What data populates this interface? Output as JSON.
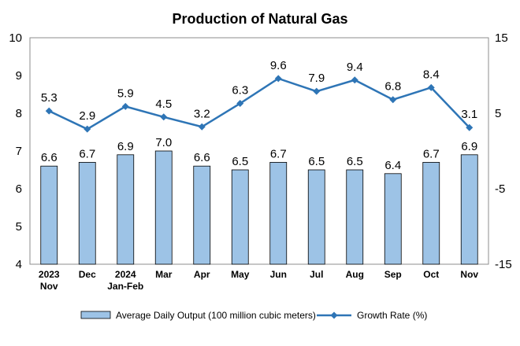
{
  "chart_data": {
    "type": "bar",
    "title": "Production of Natural Gas",
    "categories": [
      [
        "2023",
        "Nov"
      ],
      [
        "Dec"
      ],
      [
        "2024",
        "Jan-Feb"
      ],
      [
        "Mar"
      ],
      [
        "Apr"
      ],
      [
        "May"
      ],
      [
        "Jun"
      ],
      [
        "Jul"
      ],
      [
        "Aug"
      ],
      [
        "Sep"
      ],
      [
        "Oct"
      ],
      [
        "Nov"
      ]
    ],
    "series": [
      {
        "name": "Average Daily Output (100 million cubic meters)",
        "type": "bar",
        "axis": "left",
        "color": "#9dc3e6",
        "values": [
          6.6,
          6.7,
          6.9,
          7.0,
          6.6,
          6.5,
          6.7,
          6.5,
          6.5,
          6.4,
          6.7,
          6.9
        ],
        "labels": [
          "6.6",
          "6.7",
          "6.9",
          "7.0",
          "6.6",
          "6.5",
          "6.7",
          "6.5",
          "6.5",
          "6.4",
          "6.7",
          "6.9"
        ]
      },
      {
        "name": "Growth Rate (%)",
        "type": "line",
        "axis": "right",
        "color": "#2e75b6",
        "marker": "diamond",
        "values": [
          5.3,
          2.9,
          5.9,
          4.5,
          3.2,
          6.3,
          9.6,
          7.9,
          9.4,
          6.8,
          8.4,
          3.1
        ],
        "labels": [
          "5.3",
          "2.9",
          "5.9",
          "4.5",
          "3.2",
          "6.3",
          "9.6",
          "7.9",
          "9.4",
          "6.8",
          "8.4",
          "3.1"
        ]
      }
    ],
    "y_left": {
      "min": 4,
      "max": 10,
      "ticks": [
        "4",
        "5",
        "6",
        "7",
        "8",
        "9",
        "10"
      ]
    },
    "y_right": {
      "min": -15,
      "max": 15,
      "ticks": [
        "-15",
        "-5",
        "5",
        "15"
      ]
    },
    "grid": false,
    "legend_position": "bottom"
  }
}
